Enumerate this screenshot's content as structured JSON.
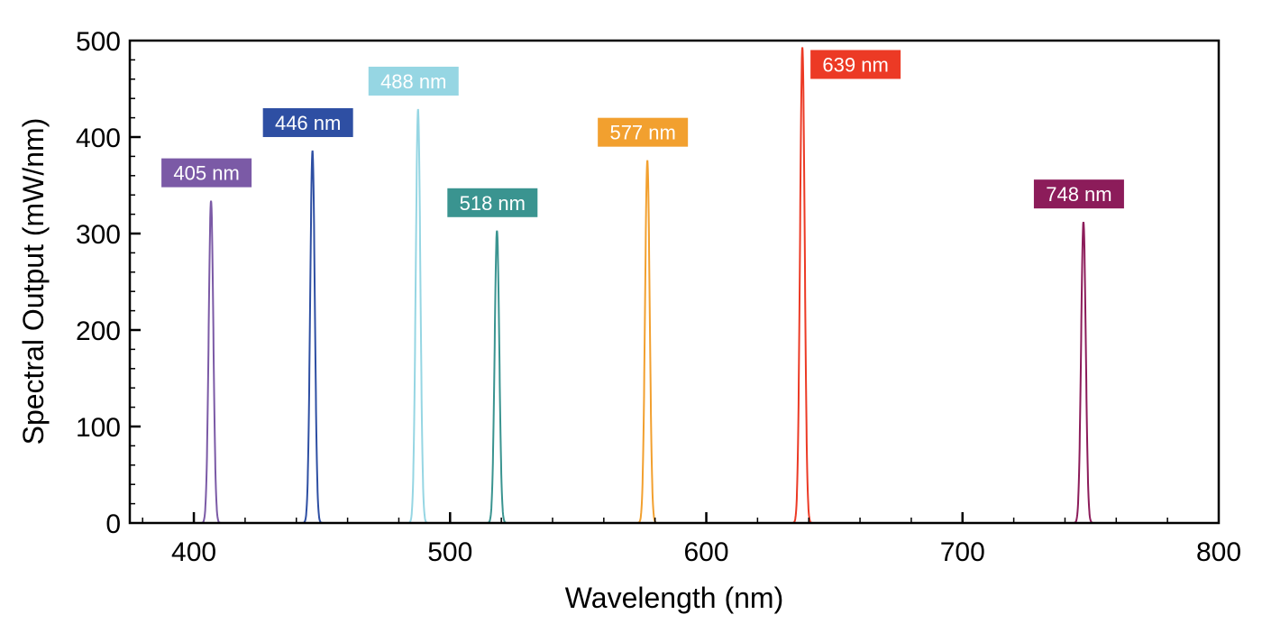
{
  "chart_data": {
    "type": "line",
    "title": "",
    "xlabel": "Wavelength (nm)",
    "ylabel": "Spectral Output (mW/nm)",
    "xlim": [
      375,
      800
    ],
    "ylim": [
      0,
      500
    ],
    "xticks": [
      400,
      500,
      600,
      700,
      800
    ],
    "yticks": [
      0,
      100,
      200,
      300,
      400,
      500
    ],
    "x_minor_step": 20,
    "y_minor_step": 20,
    "grid": false,
    "legend": "none",
    "series": [
      {
        "label": "405 nm",
        "peak_wavelength": 406.7,
        "peak_value": 334,
        "color": "#7b5aa6",
        "label_position": "above"
      },
      {
        "label": "446 nm",
        "peak_wavelength": 446.3,
        "peak_value": 386,
        "color": "#2e4fa3",
        "label_position": "above"
      },
      {
        "label": "488 nm",
        "peak_wavelength": 487.5,
        "peak_value": 429,
        "color": "#96d6e3",
        "label_position": "above"
      },
      {
        "label": "518 nm",
        "peak_wavelength": 518.3,
        "peak_value": 303,
        "color": "#3a9490",
        "label_position": "above"
      },
      {
        "label": "577 nm",
        "peak_wavelength": 577.0,
        "peak_value": 376,
        "color": "#f2a02f",
        "label_position": "above"
      },
      {
        "label": "639 nm",
        "peak_wavelength": 637.5,
        "peak_value": 493,
        "color": "#ec3a25",
        "label_position": "right"
      },
      {
        "label": "748 nm",
        "peak_wavelength": 747.2,
        "peak_value": 312,
        "color": "#8c1c5a",
        "label_position": "above"
      }
    ]
  }
}
